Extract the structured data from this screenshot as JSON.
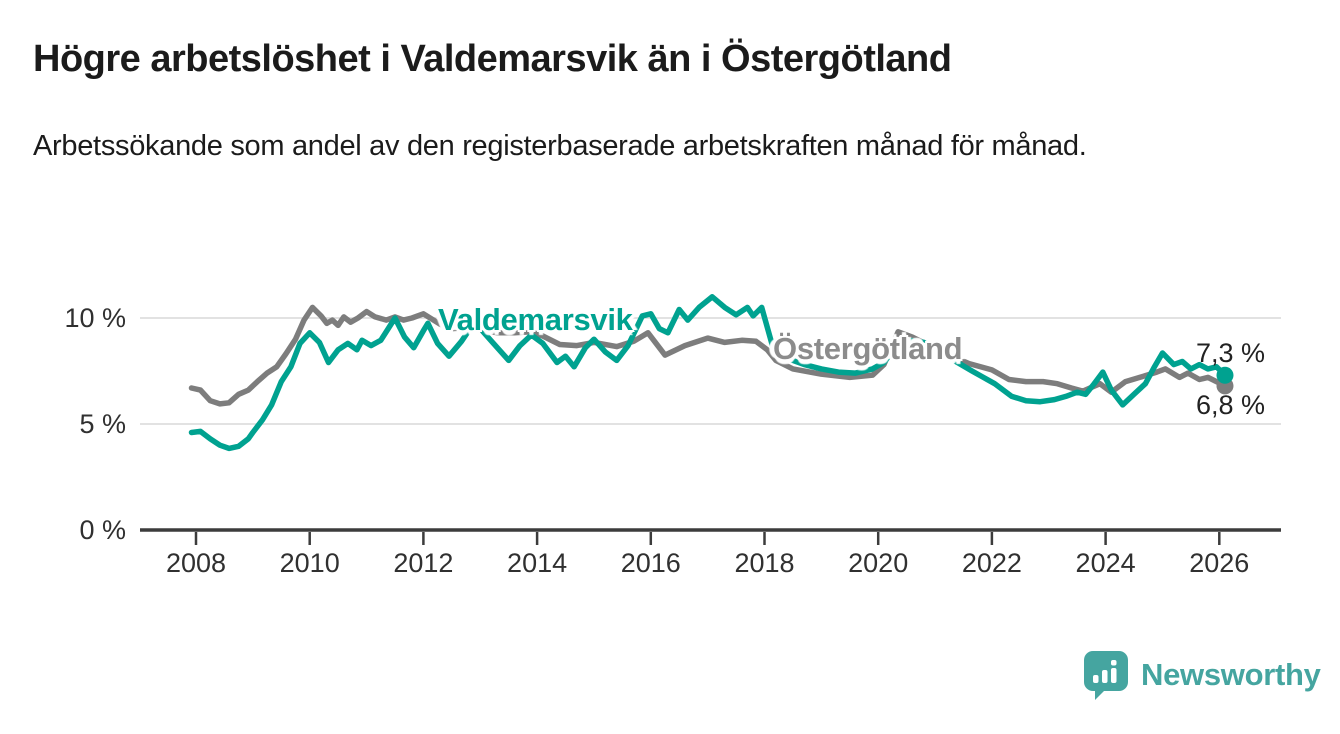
{
  "header": {
    "title": "Högre arbetslöshet i Valdemarsvik än i Östergötland",
    "subtitle": "Arbetssökande som andel av den registerbaserade arbetskraften månad för månad."
  },
  "footer": {
    "brand": "Newsworthy"
  },
  "colors": {
    "valdemarsvik_teal": "#00a290",
    "ostergotland_gray": "#7d7d7d",
    "ostergotland_label_gray": "#8c8c8c",
    "axis": "#3c3c3c",
    "gridline": "#d9d9d9",
    "title_text": "#1b1b1b",
    "logo_teal": "#45a5a0"
  },
  "chart_data": {
    "type": "line",
    "title": "Högre arbetslöshet i Valdemarsvik än i Östergötland",
    "subtitle": "Arbetssökande som andel av den registerbaserade arbetskraften månad för månad.",
    "ylabel": "",
    "xlabel": "",
    "grid": "horizontal",
    "legend_position": "inline-labels",
    "y_axis": {
      "unit": "%",
      "range": [
        0,
        11.8
      ],
      "ticks": [
        {
          "value": 0,
          "label": "0 %"
        },
        {
          "value": 5,
          "label": "5 %"
        },
        {
          "value": 10,
          "label": "10 %"
        }
      ]
    },
    "x_axis": {
      "range": [
        2007.0,
        2027.1
      ],
      "ticks": [
        {
          "value": 2008,
          "label": "2008"
        },
        {
          "value": 2010,
          "label": "2010"
        },
        {
          "value": 2012,
          "label": "2012"
        },
        {
          "value": 2014,
          "label": "2014"
        },
        {
          "value": 2016,
          "label": "2016"
        },
        {
          "value": 2018,
          "label": "2018"
        },
        {
          "value": 2020,
          "label": "2020"
        },
        {
          "value": 2022,
          "label": "2022"
        },
        {
          "value": 2024,
          "label": "2024"
        },
        {
          "value": 2026,
          "label": "2026"
        }
      ]
    },
    "series": [
      {
        "id": "ostergotland",
        "name": "Östergötland",
        "label_text": "Östergötland",
        "end_label": "6,8 %",
        "end_value": 6.8,
        "color": "#7d7d7d",
        "points": [
          [
            2007.92,
            6.7
          ],
          [
            2008.08,
            6.6
          ],
          [
            2008.25,
            6.1
          ],
          [
            2008.42,
            5.95
          ],
          [
            2008.58,
            6.0
          ],
          [
            2008.75,
            6.4
          ],
          [
            2008.92,
            6.6
          ],
          [
            2009.08,
            7.0
          ],
          [
            2009.25,
            7.4
          ],
          [
            2009.42,
            7.7
          ],
          [
            2009.58,
            8.3
          ],
          [
            2009.75,
            9.0
          ],
          [
            2009.9,
            9.9
          ],
          [
            2010.05,
            10.5
          ],
          [
            2010.2,
            10.1
          ],
          [
            2010.3,
            9.75
          ],
          [
            2010.4,
            9.9
          ],
          [
            2010.5,
            9.65
          ],
          [
            2010.6,
            10.05
          ],
          [
            2010.72,
            9.8
          ],
          [
            2010.85,
            10.0
          ],
          [
            2011.0,
            10.3
          ],
          [
            2011.15,
            10.05
          ],
          [
            2011.35,
            9.9
          ],
          [
            2011.5,
            10.05
          ],
          [
            2011.65,
            9.9
          ],
          [
            2011.8,
            10.0
          ],
          [
            2012.0,
            10.2
          ],
          [
            2012.3,
            9.7
          ],
          [
            2012.5,
            9.5
          ],
          [
            2012.8,
            9.55
          ],
          [
            2013.0,
            9.45
          ],
          [
            2013.3,
            9.3
          ],
          [
            2013.6,
            9.3
          ],
          [
            2013.9,
            9.35
          ],
          [
            2014.1,
            9.15
          ],
          [
            2014.4,
            8.75
          ],
          [
            2014.7,
            8.7
          ],
          [
            2015.0,
            8.85
          ],
          [
            2015.4,
            8.65
          ],
          [
            2015.7,
            8.9
          ],
          [
            2015.95,
            9.3
          ],
          [
            2016.25,
            8.25
          ],
          [
            2016.6,
            8.7
          ],
          [
            2017.0,
            9.05
          ],
          [
            2017.3,
            8.85
          ],
          [
            2017.6,
            8.95
          ],
          [
            2017.85,
            8.9
          ],
          [
            2018.05,
            8.5
          ],
          [
            2018.2,
            8.0
          ],
          [
            2018.5,
            7.6
          ],
          [
            2019.0,
            7.35
          ],
          [
            2019.5,
            7.2
          ],
          [
            2019.9,
            7.3
          ],
          [
            2020.1,
            7.8
          ],
          [
            2020.35,
            9.35
          ],
          [
            2020.6,
            9.1
          ],
          [
            2020.9,
            8.7
          ],
          [
            2021.2,
            8.3
          ],
          [
            2021.6,
            7.85
          ],
          [
            2022.0,
            7.55
          ],
          [
            2022.3,
            7.1
          ],
          [
            2022.6,
            7.0
          ],
          [
            2022.9,
            7.0
          ],
          [
            2023.15,
            6.9
          ],
          [
            2023.4,
            6.7
          ],
          [
            2023.6,
            6.55
          ],
          [
            2023.9,
            6.9
          ],
          [
            2024.1,
            6.5
          ],
          [
            2024.35,
            7.0
          ],
          [
            2024.6,
            7.2
          ],
          [
            2024.9,
            7.45
          ],
          [
            2025.05,
            7.6
          ],
          [
            2025.3,
            7.2
          ],
          [
            2025.45,
            7.4
          ],
          [
            2025.65,
            7.1
          ],
          [
            2025.8,
            7.2
          ],
          [
            2025.95,
            7.0
          ],
          [
            2026.1,
            6.8
          ]
        ]
      },
      {
        "id": "valdemarsvik",
        "name": "Valdemarsvik",
        "label_text": "Valdemarsvik",
        "end_label": "7,3 %",
        "end_value": 7.3,
        "color": "#00a290",
        "points": [
          [
            2007.92,
            4.6
          ],
          [
            2008.08,
            4.65
          ],
          [
            2008.25,
            4.3
          ],
          [
            2008.42,
            4.0
          ],
          [
            2008.58,
            3.85
          ],
          [
            2008.75,
            3.95
          ],
          [
            2008.92,
            4.3
          ],
          [
            2009.0,
            4.6
          ],
          [
            2009.17,
            5.2
          ],
          [
            2009.33,
            5.9
          ],
          [
            2009.5,
            7.0
          ],
          [
            2009.67,
            7.7
          ],
          [
            2009.83,
            8.8
          ],
          [
            2010.0,
            9.3
          ],
          [
            2010.17,
            8.85
          ],
          [
            2010.33,
            7.9
          ],
          [
            2010.5,
            8.5
          ],
          [
            2010.67,
            8.8
          ],
          [
            2010.83,
            8.5
          ],
          [
            2010.92,
            8.95
          ],
          [
            2011.08,
            8.7
          ],
          [
            2011.25,
            8.95
          ],
          [
            2011.5,
            10.0
          ],
          [
            2011.67,
            9.1
          ],
          [
            2011.83,
            8.6
          ],
          [
            2012.0,
            9.4
          ],
          [
            2012.08,
            9.75
          ],
          [
            2012.25,
            8.8
          ],
          [
            2012.45,
            8.2
          ],
          [
            2012.67,
            8.9
          ],
          [
            2012.87,
            9.7
          ],
          [
            2013.0,
            9.5
          ],
          [
            2013.2,
            8.9
          ],
          [
            2013.5,
            8.0
          ],
          [
            2013.7,
            8.7
          ],
          [
            2013.9,
            9.2
          ],
          [
            2014.1,
            8.8
          ],
          [
            2014.35,
            7.9
          ],
          [
            2014.5,
            8.2
          ],
          [
            2014.65,
            7.7
          ],
          [
            2014.85,
            8.6
          ],
          [
            2015.0,
            9.0
          ],
          [
            2015.2,
            8.4
          ],
          [
            2015.4,
            8.0
          ],
          [
            2015.6,
            8.7
          ],
          [
            2015.85,
            10.1
          ],
          [
            2016.0,
            10.2
          ],
          [
            2016.15,
            9.5
          ],
          [
            2016.3,
            9.3
          ],
          [
            2016.5,
            10.4
          ],
          [
            2016.65,
            9.9
          ],
          [
            2016.85,
            10.5
          ],
          [
            2017.08,
            11.0
          ],
          [
            2017.3,
            10.5
          ],
          [
            2017.5,
            10.15
          ],
          [
            2017.7,
            10.5
          ],
          [
            2017.8,
            10.1
          ],
          [
            2017.95,
            10.5
          ],
          [
            2018.15,
            8.6
          ],
          [
            2018.4,
            8.1
          ],
          [
            2018.7,
            7.8
          ],
          [
            2019.0,
            7.6
          ],
          [
            2019.3,
            7.45
          ],
          [
            2019.6,
            7.4
          ],
          [
            2019.9,
            7.6
          ],
          [
            2020.1,
            7.9
          ],
          [
            2020.3,
            8.6
          ],
          [
            2020.55,
            8.95
          ],
          [
            2020.8,
            8.85
          ],
          [
            2021.0,
            8.5
          ],
          [
            2021.3,
            8.05
          ],
          [
            2021.65,
            7.5
          ],
          [
            2021.85,
            7.2
          ],
          [
            2022.05,
            6.9
          ],
          [
            2022.35,
            6.3
          ],
          [
            2022.6,
            6.1
          ],
          [
            2022.85,
            6.05
          ],
          [
            2023.1,
            6.15
          ],
          [
            2023.3,
            6.3
          ],
          [
            2023.5,
            6.5
          ],
          [
            2023.65,
            6.4
          ],
          [
            2023.8,
            6.9
          ],
          [
            2023.95,
            7.45
          ],
          [
            2024.1,
            6.6
          ],
          [
            2024.3,
            5.9
          ],
          [
            2024.5,
            6.4
          ],
          [
            2024.7,
            6.9
          ],
          [
            2024.85,
            7.65
          ],
          [
            2025.0,
            8.35
          ],
          [
            2025.2,
            7.8
          ],
          [
            2025.35,
            7.95
          ],
          [
            2025.5,
            7.6
          ],
          [
            2025.65,
            7.8
          ],
          [
            2025.8,
            7.6
          ],
          [
            2025.95,
            7.7
          ],
          [
            2026.1,
            7.3
          ]
        ]
      }
    ]
  }
}
